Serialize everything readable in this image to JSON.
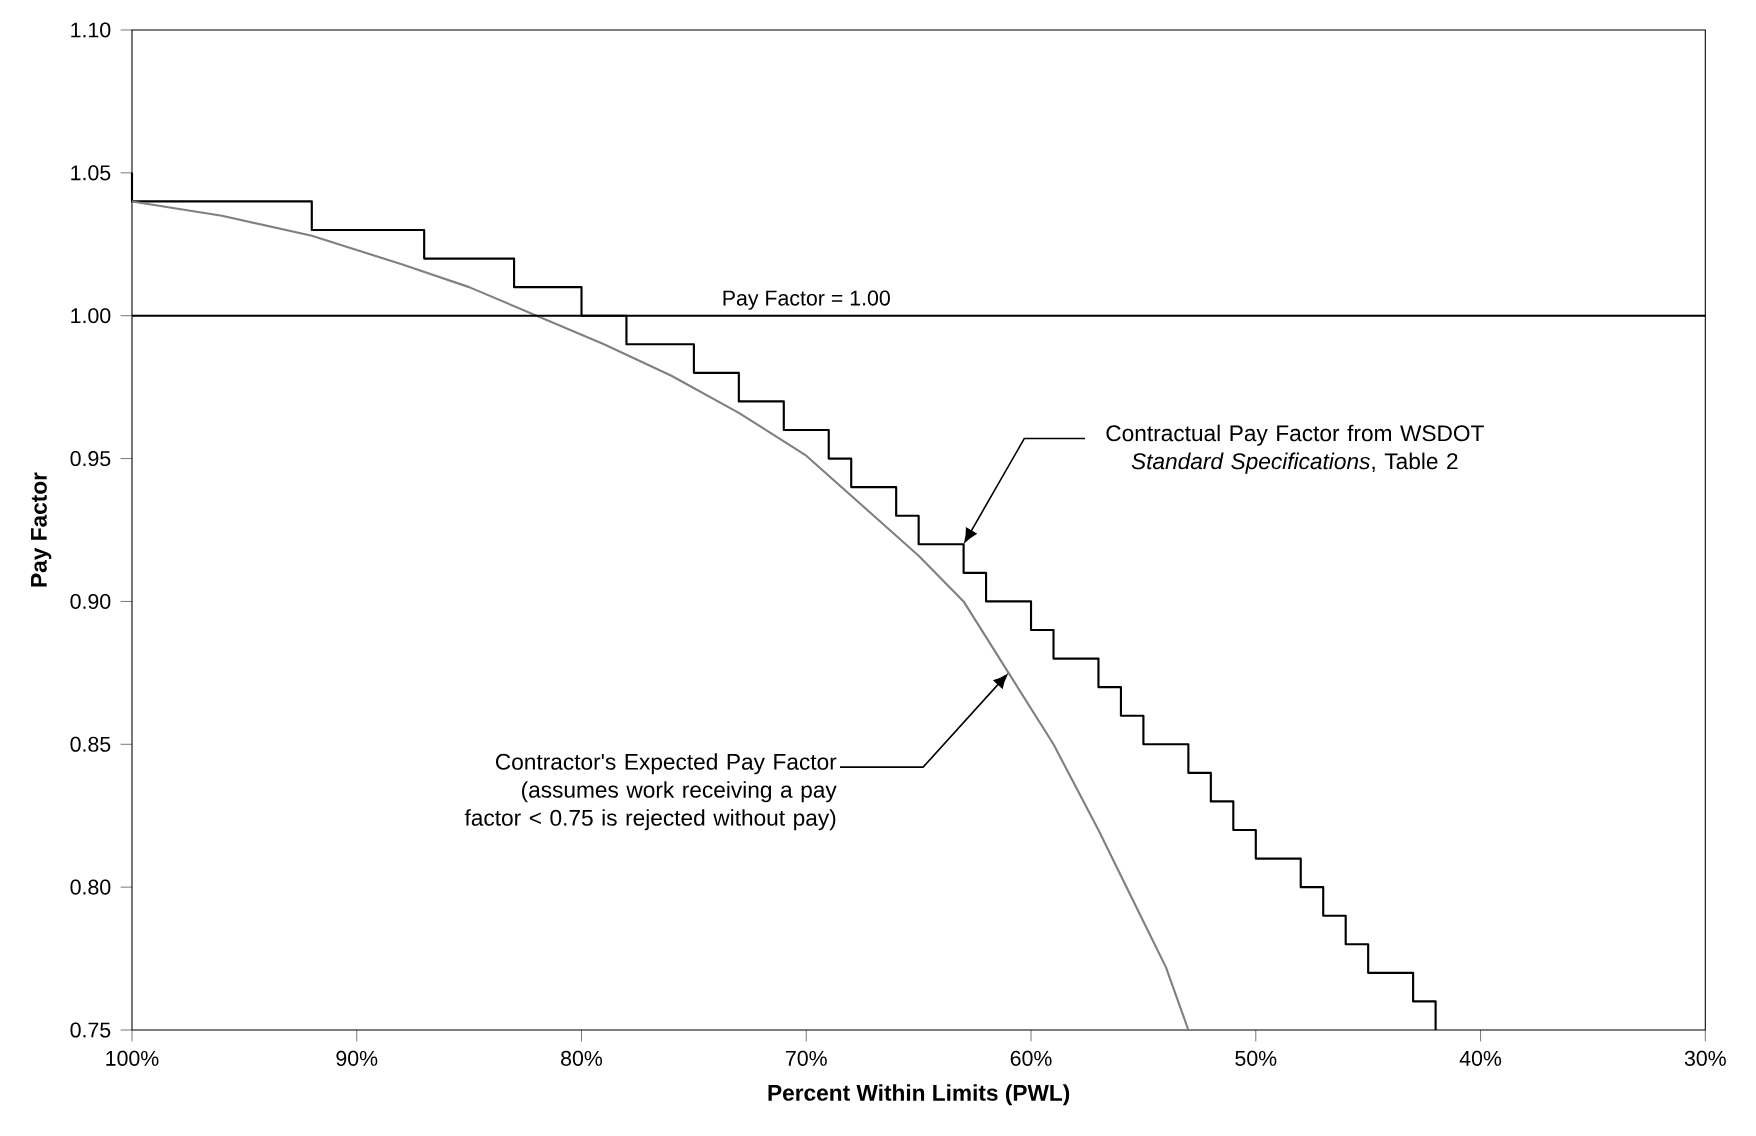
{
  "chart_data": {
    "type": "line",
    "xlabel": "Percent Within Limits (PWL)",
    "ylabel": "Pay Factor",
    "xlim": [
      100,
      30
    ],
    "xticks": [
      {
        "value": 100,
        "label": "100%"
      },
      {
        "value": 90,
        "label": "90%"
      },
      {
        "value": 80,
        "label": "80%"
      },
      {
        "value": 70,
        "label": "70%"
      },
      {
        "value": 60,
        "label": "60%"
      },
      {
        "value": 50,
        "label": "50%"
      },
      {
        "value": 40,
        "label": "40%"
      },
      {
        "value": 30,
        "label": "30%"
      }
    ],
    "ylim": [
      0.75,
      1.1
    ],
    "yticks": [
      {
        "value": 0.75,
        "label": "0.75"
      },
      {
        "value": 0.8,
        "label": "0.80"
      },
      {
        "value": 0.85,
        "label": "0.85"
      },
      {
        "value": 0.9,
        "label": "0.90"
      },
      {
        "value": 0.95,
        "label": "0.95"
      },
      {
        "value": 1.0,
        "label": "1.00"
      },
      {
        "value": 1.05,
        "label": "1.05"
      },
      {
        "value": 1.1,
        "label": "1.10"
      }
    ],
    "grid": false,
    "marker": "none",
    "series": [
      {
        "type": "step",
        "color": "#000000",
        "x": [
          100,
          100,
          92,
          87,
          83,
          80,
          78,
          75,
          73,
          71,
          69,
          68,
          66,
          65,
          63,
          62,
          60,
          59,
          57,
          56,
          55,
          53,
          52,
          51,
          50,
          48,
          47,
          46,
          45,
          43,
          42
        ],
        "values": [
          1.05,
          1.04,
          1.03,
          1.02,
          1.01,
          1.0,
          0.99,
          0.98,
          0.97,
          0.96,
          0.95,
          0.94,
          0.93,
          0.92,
          0.91,
          0.9,
          0.89,
          0.88,
          0.87,
          0.86,
          0.85,
          0.84,
          0.83,
          0.82,
          0.81,
          0.8,
          0.79,
          0.78,
          0.77,
          0.76,
          0.75
        ]
      },
      {
        "type": "line",
        "color": "#808080",
        "x": [
          100,
          96,
          92,
          88,
          85,
          82,
          79,
          76,
          73,
          70,
          67,
          65,
          63,
          61,
          59,
          57,
          55,
          54,
          53
        ],
        "values": [
          1.04,
          1.035,
          1.028,
          1.018,
          1.01,
          1.0,
          0.99,
          0.979,
          0.966,
          0.951,
          0.93,
          0.916,
          0.9,
          0.875,
          0.85,
          0.82,
          0.788,
          0.772,
          0.75
        ]
      }
    ],
    "ref_lines": [
      {
        "axis": "y",
        "value": 1.0,
        "label": "Pay Factor = 1.00",
        "color": "#000000"
      }
    ],
    "annotations": [
      {
        "text": "Contractual Pay Factor from WSDOT *Standard Specifications*, Table 2",
        "x": 63,
        "y": 0.92
      },
      {
        "text": "Contractor's Expected Pay Factor (assumes work receiving a pay factor < 0.75 is rejected without pay)",
        "x": 61,
        "y": 0.875
      }
    ]
  }
}
